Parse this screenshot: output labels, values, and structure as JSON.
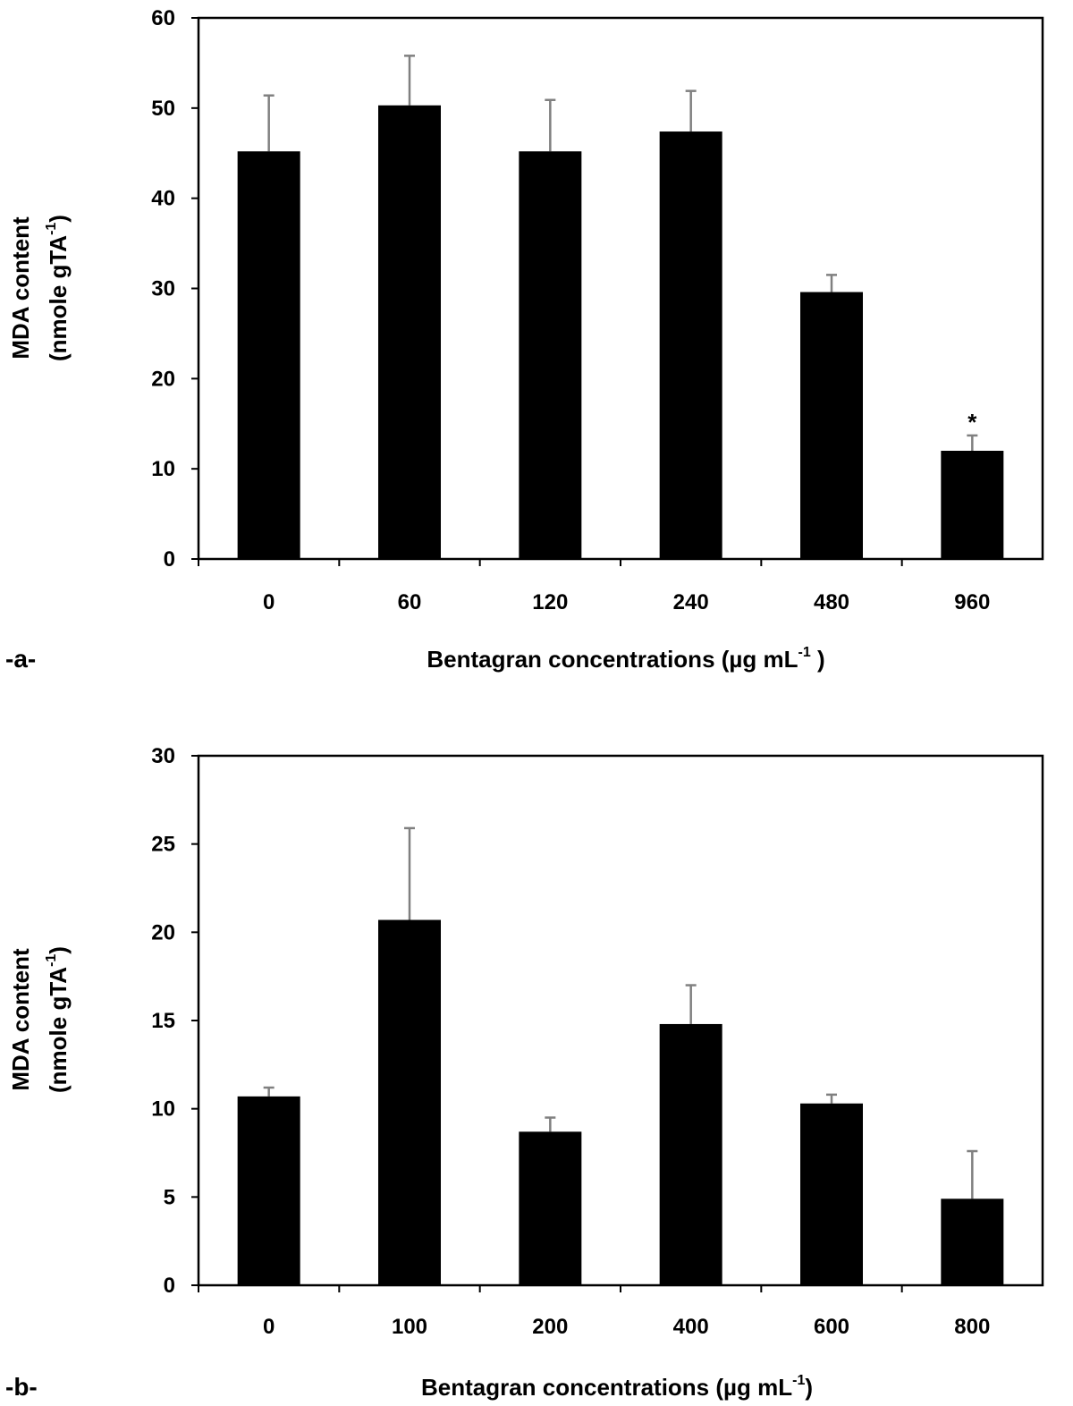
{
  "chart_data": [
    {
      "type": "bar",
      "panel_label": "-a-",
      "title": "",
      "categories": [
        "0",
        "60",
        "120",
        "240",
        "480",
        "960"
      ],
      "values": [
        45.2,
        50.3,
        45.2,
        47.4,
        29.6,
        12.0
      ],
      "errors": [
        6.2,
        5.5,
        5.7,
        4.5,
        1.9,
        1.7
      ],
      "annotations": [
        {
          "category": "960",
          "text": "*"
        }
      ],
      "ylim": [
        0,
        60
      ],
      "yticks": [
        "0",
        "10",
        "20",
        "30",
        "40",
        "50",
        "60"
      ],
      "xlabel": {
        "main": "Bentagran concentrations (µg mL",
        "sup": "-1",
        "tail": " )"
      },
      "ylabel": {
        "line1": "MDA content",
        "line2": "(nmole gTA",
        "sup": "-1",
        "tail": ")"
      },
      "grid": false,
      "bar_color": "#000000",
      "error_color": "#808080"
    },
    {
      "type": "bar",
      "panel_label": "-b-",
      "title": "",
      "categories": [
        "0",
        "100",
        "200",
        "400",
        "600",
        "800"
      ],
      "values": [
        10.7,
        20.7,
        8.7,
        14.8,
        10.3,
        4.9
      ],
      "errors": [
        0.5,
        5.2,
        0.8,
        2.2,
        0.5,
        2.7
      ],
      "annotations": [],
      "ylim": [
        0,
        30
      ],
      "yticks": [
        "0",
        "5",
        "10",
        "15",
        "20",
        "25",
        "30"
      ],
      "xlabel": {
        "main": "Bentagran concentrations (µg mL",
        "sup": "-1",
        "tail": ")"
      },
      "ylabel": {
        "line1": "MDA content",
        "line2": "(nmole gTA",
        "sup": "-1",
        "tail": ")"
      },
      "grid": false,
      "bar_color": "#000000",
      "error_color": "#808080"
    }
  ]
}
